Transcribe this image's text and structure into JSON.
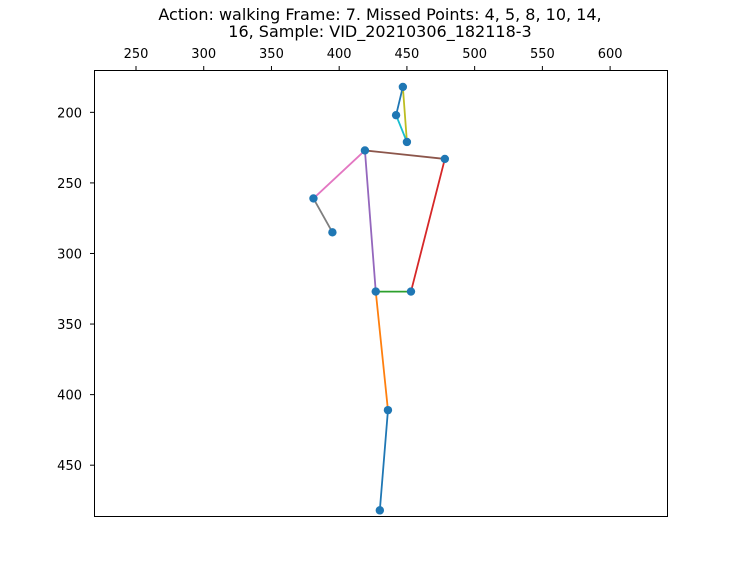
{
  "chart_data": {
    "type": "scatter",
    "title": "Action: walking   Frame: 7. Missed Points: 4, 5, 8, 10, 14,\n16,  Sample: VID_20210306_182118-3",
    "xlabel": "",
    "ylabel": "",
    "x_axis_position": "top",
    "y_inverted": true,
    "xlim": [
      219,
      642
    ],
    "ylim": [
      486,
      170
    ],
    "xticks": [
      250,
      300,
      350,
      400,
      450,
      500,
      550,
      600
    ],
    "yticks": [
      200,
      250,
      300,
      350,
      400,
      450
    ],
    "grid": false,
    "marker_color": "#1f77b4",
    "points": [
      {
        "x": 447,
        "y": 182
      },
      {
        "x": 442,
        "y": 202
      },
      {
        "x": 450,
        "y": 221
      },
      {
        "x": 419,
        "y": 227
      },
      {
        "x": 478,
        "y": 233
      },
      {
        "x": 381,
        "y": 261
      },
      {
        "x": 395,
        "y": 285
      },
      {
        "x": 427,
        "y": 327
      },
      {
        "x": 453,
        "y": 327
      },
      {
        "x": 436,
        "y": 411
      },
      {
        "x": 430,
        "y": 482
      }
    ],
    "segments": [
      {
        "from": 0,
        "to": 1,
        "color": "#1f77b4"
      },
      {
        "from": 0,
        "to": 2,
        "color": "#bcbd22"
      },
      {
        "from": 1,
        "to": 2,
        "color": "#17becf"
      },
      {
        "from": 3,
        "to": 4,
        "color": "#8c564b"
      },
      {
        "from": 3,
        "to": 5,
        "color": "#e377c2"
      },
      {
        "from": 5,
        "to": 6,
        "color": "#7f7f7f"
      },
      {
        "from": 3,
        "to": 7,
        "color": "#9467bd"
      },
      {
        "from": 4,
        "to": 8,
        "color": "#d62728"
      },
      {
        "from": 7,
        "to": 8,
        "color": "#2ca02c"
      },
      {
        "from": 7,
        "to": 9,
        "color": "#ff7f0e"
      },
      {
        "from": 9,
        "to": 10,
        "color": "#1f77b4"
      }
    ]
  }
}
